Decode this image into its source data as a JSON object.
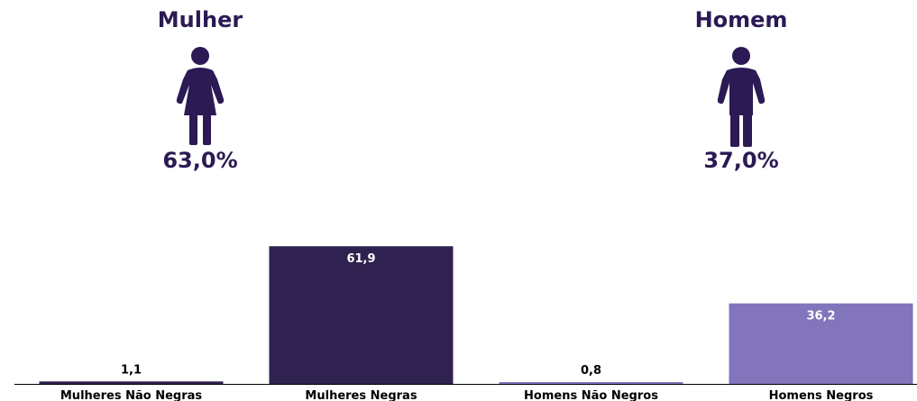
{
  "colors": {
    "dark": "#2f2250",
    "light": "#8275bc",
    "text": "#2b1a53"
  },
  "panels": {
    "female": {
      "title": "Mulher",
      "percent": "63,0%",
      "icon": "female-figure-icon"
    },
    "male": {
      "title": "Homem",
      "percent": "37,0%",
      "icon": "male-figure-icon"
    }
  },
  "chart_data": {
    "type": "bar",
    "categories": [
      "Mulheres Não Negras",
      "Mulheres Negras",
      "Homens Não Negros",
      "Homens Negros"
    ],
    "values": [
      1.1,
      61.9,
      0.8,
      36.2
    ],
    "labels": [
      "1,1",
      "61,9",
      "0,8",
      "36,2"
    ],
    "bar_colors": [
      "#2f2250",
      "#2f2250",
      "#8275bc",
      "#8275bc"
    ],
    "ylim": [
      0,
      62
    ],
    "grid": false,
    "legend": "none"
  }
}
